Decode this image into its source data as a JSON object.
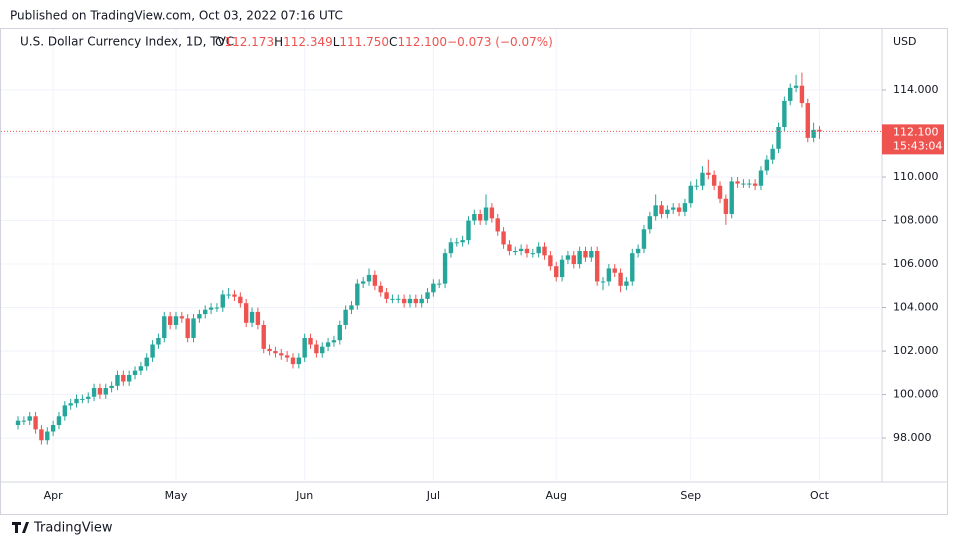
{
  "chart_data": {
    "type": "candlestick",
    "published": "Published on TradingView.com, Oct 03, 2022 07:16 UTC",
    "title": "U.S. Dollar Currency Index, 1D, TVC",
    "currency": "USD",
    "brand": "TradingView",
    "legend": [
      {
        "label": "O",
        "value": "112.173"
      },
      {
        "label": "H",
        "value": "112.349"
      },
      {
        "label": "L",
        "value": "111.750"
      },
      {
        "label": "C",
        "value": "112.100"
      },
      {
        "label": "",
        "value": "−0.073 (−0.07%)"
      }
    ],
    "last_price": {
      "value": 112.1,
      "label": "112.100"
    },
    "countdown": "15:43:04",
    "up_color": "#26a69a",
    "down_color": "#ef5350",
    "grid": true,
    "ylim": [
      95.98,
      116.76
    ],
    "yticks": [
      {
        "value": 98,
        "label": "98.000"
      },
      {
        "value": 100,
        "label": "100.000"
      },
      {
        "value": 102,
        "label": "102.000"
      },
      {
        "value": 104,
        "label": "104.000"
      },
      {
        "value": 106,
        "label": "106.000"
      },
      {
        "value": 108,
        "label": "108.000"
      },
      {
        "value": 110,
        "label": "110.000"
      },
      {
        "value": 112,
        "label": "112.000"
      },
      {
        "value": 114,
        "label": "114.000"
      }
    ],
    "categories": [
      null,
      null,
      null,
      null,
      null,
      null,
      "Apr",
      null,
      null,
      null,
      null,
      null,
      null,
      null,
      null,
      null,
      null,
      null,
      null,
      null,
      null,
      null,
      null,
      null,
      null,
      null,
      null,
      "May",
      null,
      null,
      null,
      null,
      null,
      null,
      null,
      null,
      null,
      null,
      null,
      null,
      null,
      null,
      null,
      null,
      null,
      null,
      null,
      null,
      null,
      "Jun",
      null,
      null,
      null,
      null,
      null,
      null,
      null,
      null,
      null,
      null,
      null,
      null,
      null,
      null,
      null,
      null,
      null,
      null,
      null,
      null,
      null,
      "Jul",
      null,
      null,
      null,
      null,
      null,
      null,
      null,
      null,
      null,
      null,
      null,
      null,
      null,
      null,
      null,
      null,
      null,
      null,
      null,
      null,
      "Aug",
      null,
      null,
      null,
      null,
      null,
      null,
      null,
      null,
      null,
      null,
      null,
      null,
      null,
      null,
      null,
      null,
      null,
      null,
      null,
      null,
      null,
      null,
      "Sep",
      null,
      null,
      null,
      null,
      null,
      null,
      null,
      null,
      null,
      null,
      null,
      null,
      null,
      null,
      null,
      null,
      null,
      null,
      null,
      null,
      null,
      "Oct"
    ],
    "open": [
      98.6,
      98.8,
      98.8,
      99.0,
      98.4,
      97.9,
      98.3,
      98.6,
      99.0,
      99.5,
      99.6,
      99.8,
      99.8,
      99.9,
      100.3,
      100.0,
      100.3,
      100.4,
      100.9,
      100.6,
      100.9,
      101.1,
      101.3,
      101.7,
      102.3,
      102.6,
      103.6,
      103.2,
      103.6,
      103.5,
      102.6,
      103.5,
      103.7,
      103.9,
      104.0,
      104.0,
      104.6,
      104.6,
      104.5,
      104.2,
      103.3,
      103.8,
      103.2,
      102.1,
      102.0,
      101.9,
      101.8,
      101.7,
      101.4,
      101.7,
      102.6,
      102.3,
      101.9,
      102.2,
      102.4,
      102.5,
      103.2,
      103.9,
      104.1,
      105.1,
      105.2,
      105.5,
      105.0,
      104.7,
      104.4,
      104.4,
      104.4,
      104.2,
      104.4,
      104.2,
      104.4,
      104.7,
      105.1,
      105.1,
      106.5,
      107.0,
      107.0,
      107.1,
      108.0,
      108.3,
      108.0,
      108.6,
      108.1,
      107.5,
      106.9,
      106.6,
      106.6,
      106.7,
      106.5,
      106.5,
      106.8,
      106.4,
      105.9,
      105.4,
      106.2,
      106.4,
      106.0,
      106.6,
      106.3,
      106.6,
      105.2,
      105.2,
      105.8,
      105.6,
      105.0,
      105.2,
      106.5,
      106.7,
      107.6,
      108.2,
      108.7,
      108.3,
      108.5,
      108.6,
      108.4,
      108.8,
      109.6,
      109.6,
      110.2,
      110.1,
      109.6,
      109.0,
      108.3,
      109.8,
      109.7,
      109.7,
      109.7,
      109.6,
      110.3,
      110.8,
      111.3,
      112.3,
      113.5,
      114.1,
      114.2,
      113.4,
      111.8,
      112.173
    ],
    "high": [
      99.0,
      99.0,
      99.2,
      99.2,
      98.6,
      98.5,
      98.8,
      99.2,
      99.7,
      99.8,
      100.0,
      100.0,
      100.1,
      100.5,
      100.5,
      100.5,
      100.6,
      101.1,
      101.1,
      101.1,
      101.3,
      101.5,
      101.9,
      102.5,
      102.8,
      103.8,
      103.8,
      103.8,
      103.8,
      103.7,
      103.7,
      103.9,
      104.1,
      104.2,
      104.2,
      104.8,
      104.9,
      104.8,
      104.7,
      104.4,
      104.0,
      104.0,
      103.4,
      102.3,
      102.2,
      102.1,
      102.0,
      101.9,
      101.9,
      102.8,
      102.8,
      102.5,
      102.4,
      102.6,
      102.7,
      103.4,
      104.1,
      104.3,
      105.3,
      105.4,
      105.8,
      105.7,
      105.2,
      104.9,
      104.6,
      104.6,
      104.6,
      104.6,
      104.6,
      104.6,
      104.9,
      105.3,
      105.3,
      106.7,
      107.2,
      107.2,
      107.3,
      108.2,
      108.5,
      108.5,
      109.2,
      108.8,
      108.3,
      107.7,
      107.1,
      106.8,
      106.9,
      106.9,
      106.7,
      107.0,
      107.0,
      106.6,
      106.1,
      106.4,
      106.6,
      106.6,
      106.8,
      106.8,
      106.8,
      106.8,
      105.4,
      106.0,
      106.0,
      105.8,
      105.4,
      106.7,
      106.9,
      107.8,
      108.4,
      109.2,
      108.9,
      108.7,
      108.8,
      108.8,
      109.0,
      109.8,
      109.9,
      110.5,
      110.8,
      110.3,
      109.8,
      109.2,
      110.0,
      110.0,
      109.9,
      109.9,
      109.9,
      110.5,
      111.0,
      111.5,
      112.5,
      113.7,
      114.3,
      114.7,
      114.8,
      113.6,
      112.5,
      112.349
    ],
    "low": [
      98.4,
      98.6,
      98.6,
      98.2,
      97.7,
      97.7,
      98.1,
      98.4,
      98.8,
      99.3,
      99.4,
      99.6,
      99.6,
      99.7,
      99.8,
      99.8,
      100.1,
      100.2,
      100.4,
      100.4,
      100.7,
      100.9,
      101.1,
      101.5,
      102.1,
      102.4,
      103.0,
      103.0,
      103.3,
      102.4,
      102.4,
      103.3,
      103.5,
      103.7,
      103.8,
      103.8,
      104.4,
      104.3,
      104.0,
      103.1,
      103.1,
      103.0,
      101.9,
      101.8,
      101.7,
      101.6,
      101.5,
      101.2,
      101.2,
      101.5,
      102.1,
      101.7,
      101.7,
      102.0,
      102.2,
      102.3,
      103.0,
      103.7,
      103.9,
      104.9,
      105.0,
      104.8,
      104.5,
      104.2,
      104.2,
      104.2,
      104.0,
      104.0,
      104.0,
      104.0,
      104.2,
      104.5,
      104.9,
      104.9,
      106.3,
      106.8,
      106.8,
      106.9,
      107.8,
      107.8,
      107.8,
      107.9,
      107.3,
      106.7,
      106.4,
      106.4,
      106.4,
      106.3,
      106.3,
      106.3,
      106.2,
      105.7,
      105.2,
      105.2,
      106.0,
      105.8,
      105.8,
      106.1,
      106.1,
      105.0,
      104.8,
      105.0,
      105.4,
      104.7,
      104.8,
      105.0,
      106.3,
      106.5,
      107.4,
      108.0,
      108.1,
      108.1,
      108.3,
      108.2,
      108.2,
      108.6,
      109.4,
      109.4,
      109.9,
      109.4,
      108.8,
      107.8,
      108.1,
      109.5,
      109.5,
      109.5,
      109.4,
      109.4,
      110.1,
      110.6,
      111.1,
      112.1,
      113.3,
      113.9,
      113.2,
      111.6,
      111.6,
      111.75
    ],
    "close": [
      98.8,
      98.8,
      99.0,
      98.4,
      97.9,
      98.3,
      98.6,
      99.0,
      99.5,
      99.6,
      99.8,
      99.8,
      99.9,
      100.3,
      100.0,
      100.3,
      100.4,
      100.9,
      100.6,
      100.9,
      101.1,
      101.3,
      101.7,
      102.3,
      102.6,
      103.6,
      103.2,
      103.6,
      103.5,
      102.6,
      103.5,
      103.7,
      103.9,
      104.0,
      104.0,
      104.6,
      104.6,
      104.5,
      104.2,
      103.3,
      103.8,
      103.2,
      102.1,
      102.0,
      101.9,
      101.8,
      101.7,
      101.4,
      101.7,
      102.6,
      102.3,
      101.9,
      102.2,
      102.4,
      102.5,
      103.2,
      103.9,
      104.1,
      105.1,
      105.2,
      105.5,
      105.0,
      104.7,
      104.4,
      104.4,
      104.4,
      104.2,
      104.4,
      104.2,
      104.4,
      104.7,
      105.1,
      105.1,
      106.5,
      107.0,
      107.0,
      107.1,
      108.0,
      108.3,
      108.0,
      108.6,
      108.1,
      107.5,
      106.9,
      106.6,
      106.6,
      106.7,
      106.5,
      106.5,
      106.8,
      106.4,
      105.9,
      105.4,
      106.2,
      106.4,
      106.0,
      106.6,
      106.3,
      106.6,
      105.2,
      105.2,
      105.8,
      105.6,
      105.0,
      105.2,
      106.5,
      106.7,
      107.6,
      108.2,
      108.7,
      108.3,
      108.5,
      108.6,
      108.4,
      108.8,
      109.6,
      109.6,
      110.2,
      110.1,
      109.6,
      109.0,
      108.3,
      109.8,
      109.7,
      109.7,
      109.7,
      109.6,
      110.3,
      110.8,
      111.3,
      112.3,
      113.5,
      114.1,
      114.2,
      113.4,
      111.8,
      112.17,
      112.1
    ]
  }
}
